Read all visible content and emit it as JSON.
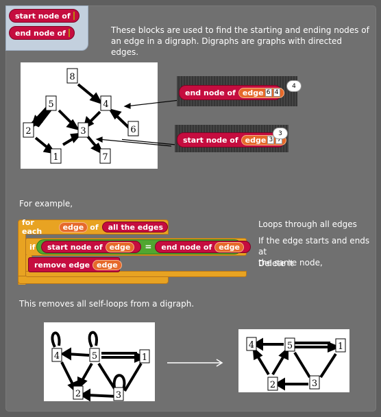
{
  "legend": {
    "start_block": "start node of",
    "end_block": "end node of"
  },
  "intro": {
    "line1": "These blocks are used to find the starting and ending nodes of",
    "line2": "an edge in a digraph. Digraphs are graphs with directed edges."
  },
  "graph1": {
    "nodes": [
      "8",
      "5",
      "4",
      "2",
      "3",
      "6",
      "1",
      "7"
    ]
  },
  "example1": {
    "block": "end node of",
    "edge_label": "edge",
    "a": "6",
    "b": "4",
    "result": "4"
  },
  "example2": {
    "block": "start node of",
    "edge_label": "edge",
    "a": "3",
    "b": "7",
    "result": "3"
  },
  "for_example": "For example,",
  "script": {
    "for_each": "for each",
    "edge_var": "edge",
    "of": "of",
    "all_edges": "all the edges",
    "if": "if",
    "start_node_of": "start node of",
    "edge1": "edge",
    "equals": "=",
    "end_node_of": "end node of",
    "edge2": "edge",
    "remove_edge": "remove edge",
    "edge3": "edge"
  },
  "annotations": {
    "loops": "Loops through all edges",
    "if_line1": "If the edge starts and ends at",
    "if_line2": "the same node,",
    "delete": "Delete it"
  },
  "removes_text": "This removes all self-loops from a digraph.",
  "graph_before": {
    "nodes": [
      "4",
      "5",
      "1",
      "2",
      "3"
    ]
  },
  "graph_after": {
    "nodes": [
      "4",
      "5",
      "1",
      "2",
      "3"
    ]
  },
  "colors": {
    "red_block": "#c50d3f",
    "orange_var": "#e6692a",
    "control": "#e8a322",
    "operator": "#50a631",
    "panel": "#707070"
  }
}
